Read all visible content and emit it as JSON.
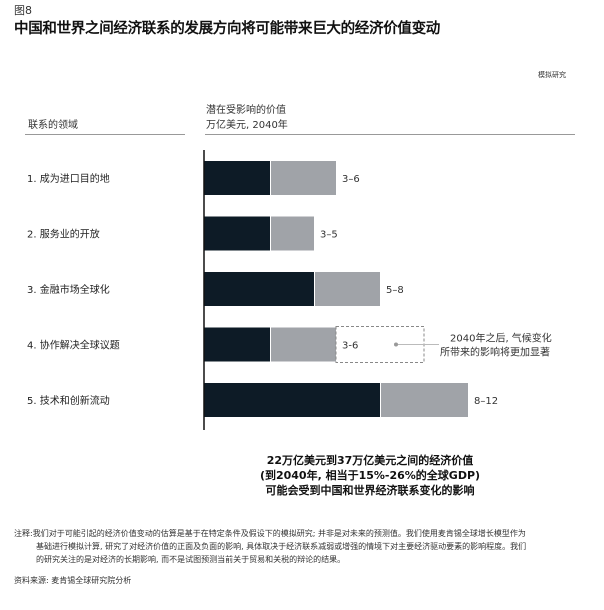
{
  "figure_label": "图8",
  "title": "中国和世界之间经济联系的发展方向将可能带来巨大的经济价值变动",
  "tag": "模拟研究",
  "left_header": "联系的领域",
  "right_header_line1": "潜在受影响的价值",
  "right_header_line2": "万亿美元, 2040年",
  "chart_data": {
    "type": "bar",
    "orientation": "horizontal",
    "stacked": true,
    "categories": [
      "1. 成为进口目的地",
      "2. 服务业的开放",
      "3. 金融市场全球化",
      "4. 协作解决全球议题",
      "5. 技术和创新流动"
    ],
    "range_low": [
      3,
      3,
      5,
      3,
      8
    ],
    "range_high": [
      6,
      5,
      8,
      6,
      12
    ],
    "data_labels": [
      "3–6",
      "3–5",
      "5–8",
      "3-6",
      "8–12"
    ],
    "colors": {
      "low": "#0d1b26",
      "high": "#a0a3a8"
    },
    "annotation": {
      "category_index": 3,
      "line1": "2040年之后, 气候变化",
      "line2": "所带来的影响将更加显著",
      "dashed_extension_to": 10
    },
    "grid": false
  },
  "summary": [
    "22万亿美元到37万亿美元之间的经济价值",
    "(到2040年, 相当于15%-26%的全球GDP)",
    "可能会受到中国和世界经济联系变化的影响"
  ],
  "note_label": "注释:",
  "note": [
    "我们对于可能引起的经济价值变动的估算是基于在特定条件及假设下的模拟研究; 并非是对未来的预测值。我们使用麦肯锡全球增长模型作为",
    "基础进行模拟计算, 研究了对经济价值的正面及负面的影响, 具体取决于经济联系减弱或增强的情境下对主要经济驱动要素的影响程度。我们",
    "的研究关注的是对经济的长期影响, 而不是试图预测当前关于贸易和关税的辩论的结果。"
  ],
  "source": "资料来源: 麦肯锡全球研究院分析"
}
